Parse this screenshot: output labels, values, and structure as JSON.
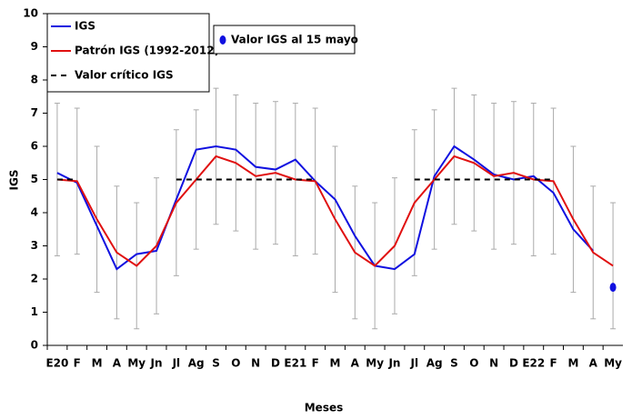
{
  "chart_data": {
    "type": "line",
    "x_label": "Meses",
    "y_label": "IGS",
    "categories": [
      "E20",
      "F",
      "M",
      "A",
      "My",
      "Jn",
      "Jl",
      "Ag",
      "S",
      "O",
      "N",
      "D",
      "E21",
      "F",
      "M",
      "A",
      "My",
      "Jn",
      "Jl",
      "Ag",
      "S",
      "O",
      "N",
      "D",
      "E22",
      "F",
      "M",
      "A",
      "My"
    ],
    "series": [
      {
        "name": "IGS",
        "color": "#1010e0",
        "style": "solid",
        "values": [
          5.2,
          4.9,
          3.6,
          2.3,
          2.75,
          2.85,
          4.4,
          5.9,
          6.0,
          5.9,
          5.38,
          5.3,
          5.6,
          4.95,
          4.4,
          3.3,
          2.4,
          2.3,
          2.75,
          5.1,
          6.0,
          5.6,
          5.15,
          5.0,
          5.1,
          4.6,
          3.5,
          2.85,
          null
        ]
      },
      {
        "name": "Patrón IGS (1992-2012)",
        "color": "#e01010",
        "style": "solid",
        "values": [
          5.0,
          4.95,
          3.8,
          2.8,
          2.4,
          3.0,
          4.3,
          5.0,
          5.7,
          5.5,
          5.1,
          5.2,
          5.0,
          4.95,
          3.8,
          2.8,
          2.4,
          3.0,
          4.3,
          5.0,
          5.7,
          5.5,
          5.1,
          5.2,
          5.0,
          4.95,
          3.8,
          2.8,
          2.4
        ],
        "error": [
          2.3,
          2.2,
          2.2,
          2.0,
          1.9,
          2.05,
          2.2,
          2.1,
          2.05,
          2.05,
          2.2,
          2.15,
          2.3,
          2.2,
          2.2,
          2.0,
          1.9,
          2.05,
          2.2,
          2.1,
          2.05,
          2.05,
          2.2,
          2.15,
          2.3,
          2.2,
          2.2,
          2.0,
          1.9
        ],
        "error_color": "#aaaaaa"
      },
      {
        "name": "Valor crítico IGS",
        "color": "#000000",
        "style": "dashed",
        "values": [
          5,
          5,
          null,
          null,
          null,
          null,
          5,
          5,
          5,
          5,
          5,
          5,
          5,
          5,
          null,
          null,
          null,
          null,
          5,
          5,
          5,
          5,
          5,
          5,
          5,
          5,
          null,
          null,
          null
        ]
      },
      {
        "name": "Valor IGS al 15 mayo",
        "color": "#1010e0",
        "style": "point",
        "values": [
          null,
          null,
          null,
          null,
          null,
          null,
          null,
          null,
          null,
          null,
          null,
          null,
          null,
          null,
          null,
          null,
          null,
          null,
          null,
          null,
          null,
          null,
          null,
          null,
          null,
          null,
          null,
          null,
          1.75
        ]
      }
    ],
    "ylim": [
      0,
      10
    ],
    "yticks": [
      0,
      1,
      2,
      3,
      4,
      5,
      6,
      7,
      8,
      9,
      10
    ]
  }
}
